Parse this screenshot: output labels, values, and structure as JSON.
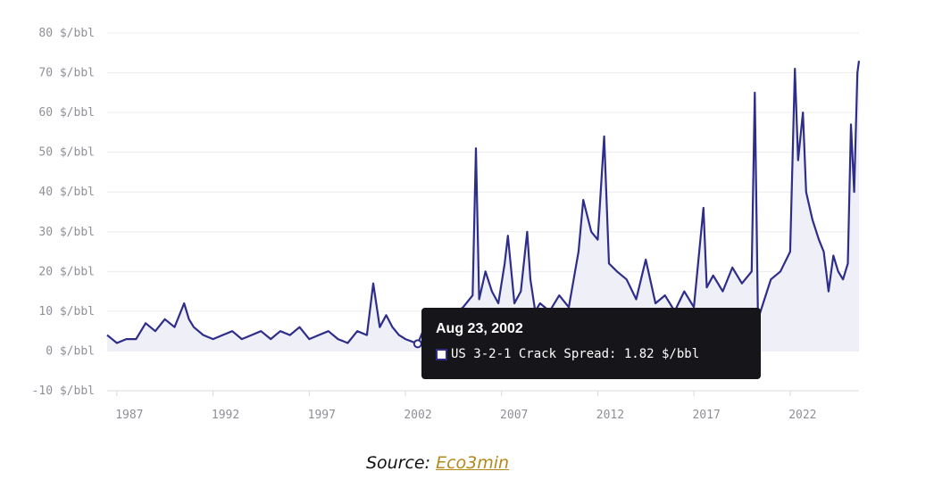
{
  "chart_data": {
    "type": "line",
    "title": "",
    "xlabel": "",
    "ylabel": "",
    "grid": true,
    "xlim": [
      "1986-07-01",
      "2025-08-01"
    ],
    "ylim": [
      -10,
      80
    ],
    "y_ticks": [
      80,
      70,
      60,
      50,
      40,
      30,
      20,
      10,
      0,
      -10
    ],
    "y_tick_labels": [
      "80 $/bbl",
      "70 $/bbl",
      "60 $/bbl",
      "50 $/bbl",
      "40 $/bbl",
      "30 $/bbl",
      "20 $/bbl",
      "10 $/bbl",
      "0 $/bbl",
      "-10 $/bbl"
    ],
    "x_tick_labels": [
      "1987",
      "1992",
      "1997",
      "2002",
      "2007",
      "2012",
      "2017",
      "2022"
    ],
    "line_color": "#2e2e8a",
    "fill_color": "#efeff7",
    "series": [
      {
        "name": "US 3-2-1 Crack Spread",
        "x": [
          "1986-07-01",
          "1987-01-01",
          "1987-07-01",
          "1988-01-01",
          "1988-07-01",
          "1989-01-01",
          "1989-07-01",
          "1990-01-01",
          "1990-07-01",
          "1990-10-01",
          "1991-01-01",
          "1991-07-01",
          "1992-01-01",
          "1992-07-01",
          "1993-01-01",
          "1993-07-01",
          "1994-01-01",
          "1994-07-01",
          "1995-01-01",
          "1995-07-01",
          "1996-01-01",
          "1996-07-01",
          "1997-01-01",
          "1997-07-01",
          "1998-01-01",
          "1998-07-01",
          "1999-01-01",
          "1999-07-01",
          "2000-01-01",
          "2000-05-01",
          "2000-09-01",
          "2001-01-01",
          "2001-05-01",
          "2001-09-01",
          "2002-01-01",
          "2002-08-23",
          "2003-01-01",
          "2003-07-01",
          "2004-01-01",
          "2004-07-01",
          "2005-01-01",
          "2005-07-01",
          "2005-09-01",
          "2005-11-01",
          "2006-03-01",
          "2006-07-01",
          "2006-11-01",
          "2007-03-01",
          "2007-05-01",
          "2007-09-01",
          "2008-01-01",
          "2008-05-01",
          "2008-07-01",
          "2008-10-01",
          "2009-01-01",
          "2009-07-01",
          "2010-01-01",
          "2010-07-01",
          "2011-01-01",
          "2011-04-01",
          "2011-09-01",
          "2012-01-01",
          "2012-05-01",
          "2012-08-01",
          "2013-01-01",
          "2013-07-01",
          "2014-01-01",
          "2014-07-01",
          "2015-01-01",
          "2015-07-01",
          "2016-01-01",
          "2016-07-01",
          "2017-01-01",
          "2017-07-01",
          "2017-09-01",
          "2018-01-01",
          "2018-07-01",
          "2019-01-01",
          "2019-07-01",
          "2020-01-01",
          "2020-03-01",
          "2020-05-01",
          "2020-09-01",
          "2021-01-01",
          "2021-07-01",
          "2022-01-01",
          "2022-04-01",
          "2022-06-01",
          "2022-09-01",
          "2022-11-01",
          "2023-03-01",
          "2023-07-01",
          "2023-10-01",
          "2024-01-01",
          "2024-04-01",
          "2024-07-01",
          "2024-10-01",
          "2025-01-01",
          "2025-03-01",
          "2025-05-01",
          "2025-06-01",
          "2025-07-01",
          "2025-08-01"
        ],
        "values": [
          4,
          2,
          3,
          3,
          7,
          5,
          8,
          6,
          12,
          8,
          6,
          4,
          3,
          4,
          5,
          3,
          4,
          5,
          3,
          5,
          4,
          6,
          3,
          4,
          5,
          3,
          2,
          5,
          4,
          17,
          6,
          9,
          6,
          4,
          3,
          1.82,
          6,
          4,
          8,
          9,
          11,
          14,
          51,
          13,
          20,
          15,
          12,
          22,
          29,
          12,
          15,
          30,
          18,
          10,
          12,
          10,
          14,
          11,
          25,
          38,
          30,
          28,
          54,
          22,
          20,
          18,
          13,
          23,
          12,
          14,
          10,
          15,
          11,
          36,
          16,
          19,
          15,
          21,
          17,
          20,
          65,
          8,
          13,
          18,
          20,
          25,
          71,
          48,
          60,
          40,
          33,
          28,
          25,
          15,
          24,
          20,
          18,
          22,
          57,
          40,
          55,
          70,
          73
        ]
      }
    ],
    "tooltip": {
      "date": "Aug 23, 2002",
      "label": "US 3-2-1 Crack Spread: 1.82 $/bbl",
      "x": "2002-08-23",
      "value": 1.82
    }
  },
  "source": {
    "label": "Source:",
    "link_text": "Eco3min"
  }
}
